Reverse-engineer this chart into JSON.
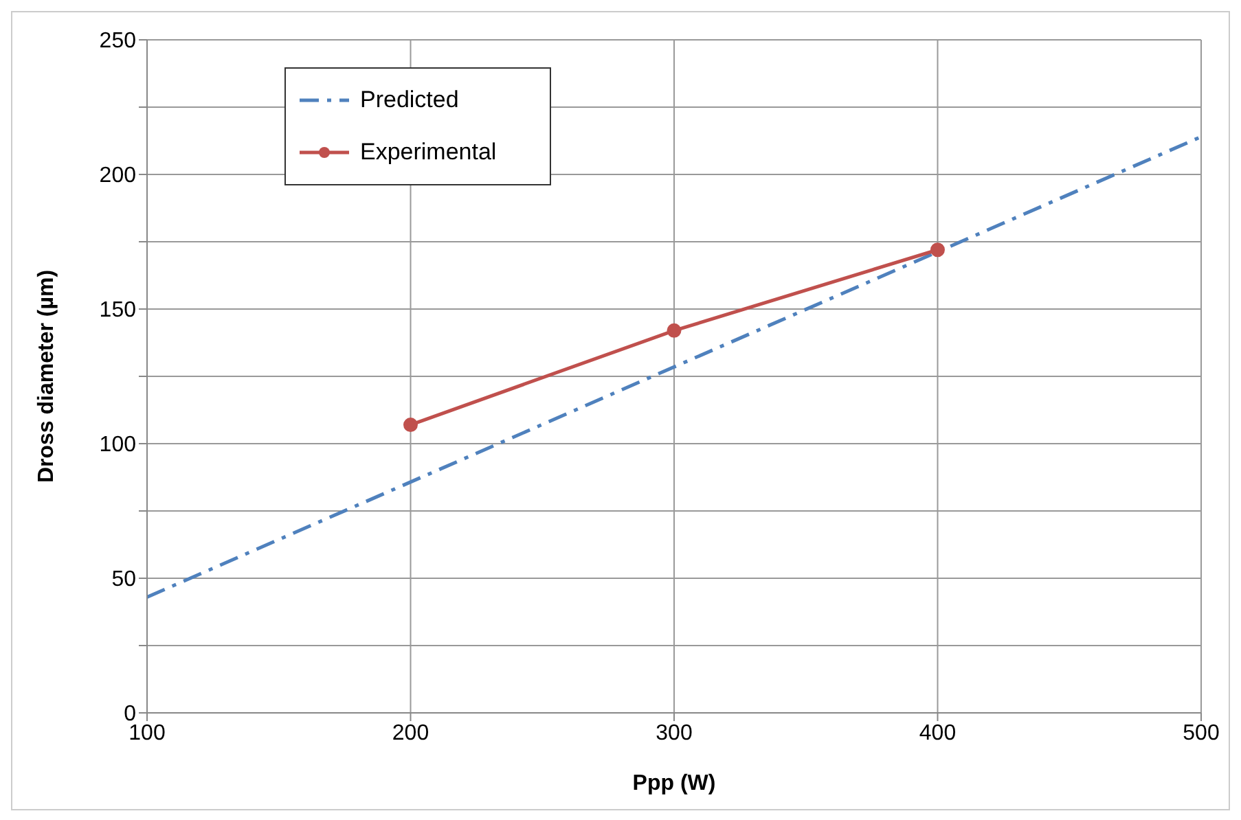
{
  "chart_data": {
    "type": "line",
    "xlabel": "Ppp (W)",
    "ylabel": "Dross diameter (µm)",
    "xlim": [
      100,
      500
    ],
    "xticks": [
      100,
      200,
      300,
      400,
      500
    ],
    "ylim": [
      0,
      250
    ],
    "yticks": [
      0,
      {
        "value": 25,
        "label": null
      },
      50,
      {
        "value": 75,
        "label": null
      },
      100,
      {
        "value": 125,
        "label": null
      },
      150,
      {
        "value": 175,
        "label": null
      },
      200,
      {
        "value": 225,
        "label": null
      },
      250
    ],
    "grid": true,
    "legend": "top left",
    "series": [
      {
        "name": "Predicted",
        "color": "#4f81bd",
        "x": [
          100,
          500
        ],
        "values": [
          43,
          214
        ],
        "line_style": "dashed",
        "marker": "none"
      },
      {
        "name": "Experimental",
        "color": "#c0504d",
        "x": [
          200,
          300,
          400
        ],
        "values": [
          107,
          142,
          172
        ],
        "line_style": "solid",
        "marker": "circle"
      }
    ]
  }
}
